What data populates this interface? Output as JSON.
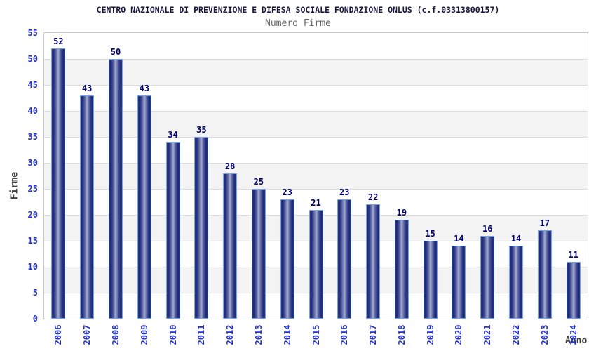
{
  "header": {
    "title": "CENTRO NAZIONALE DI PREVENZIONE E DIFESA SOCIALE FONDAZIONE ONLUS (c.f.03313800157)",
    "subtitle": "Numero Firme"
  },
  "chart_data": {
    "type": "bar",
    "title": "Numero Firme",
    "xlabel": "Anno",
    "ylabel": "Firme",
    "categories": [
      "2006",
      "2007",
      "2008",
      "2009",
      "2010",
      "2011",
      "2012",
      "2013",
      "2014",
      "2015",
      "2016",
      "2017",
      "2018",
      "2019",
      "2020",
      "2021",
      "2022",
      "2023",
      "2024"
    ],
    "values": [
      52,
      43,
      50,
      43,
      34,
      35,
      28,
      25,
      23,
      21,
      23,
      22,
      19,
      15,
      14,
      16,
      14,
      17,
      11
    ],
    "ylim": [
      0,
      55
    ],
    "ytick_step": 5,
    "yticks": [
      0,
      5,
      10,
      15,
      20,
      25,
      30,
      35,
      40,
      45,
      50,
      55
    ],
    "grid": "horizontal gridlines every 5 units with alternating gray bands",
    "legend": "none",
    "colors": {
      "bar_dark": "#1f2976",
      "bar_light": "#aab1d4",
      "bar_edge": "#72a6e3",
      "tick_label": "#2433cc",
      "value_label": "#00006e",
      "axis_title": "#3f3f3f",
      "title": "#16163e",
      "subtitle": "#666666",
      "band": "#f3f3f3",
      "gridline": "#dcdcdc",
      "plot_border": "#c8c8c8"
    }
  }
}
